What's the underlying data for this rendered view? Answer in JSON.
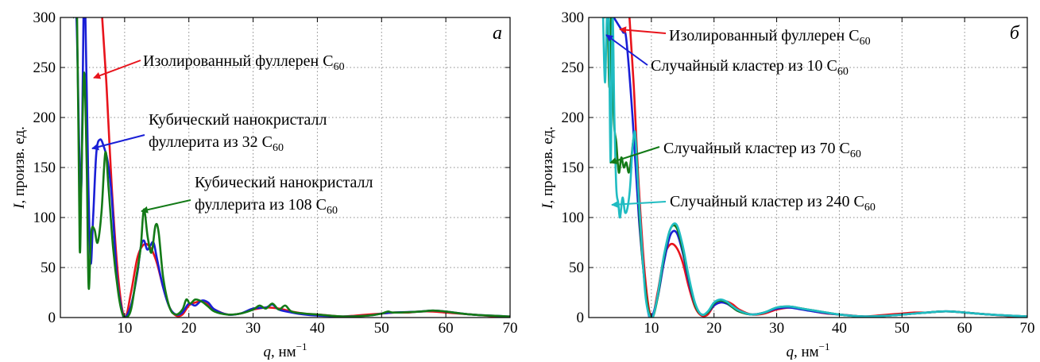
{
  "chart_data": [
    {
      "type": "line",
      "panel_label": "а",
      "xlabel": {
        "symbol": "q",
        "unit": ", нм",
        "exp": "−1"
      },
      "ylabel": {
        "symbol": "I",
        "unit": ", произв. ед."
      },
      "xlim": [
        0,
        70
      ],
      "ylim": [
        0,
        300
      ],
      "xticks": [
        10,
        20,
        30,
        40,
        50,
        60,
        70
      ],
      "yticks": [
        0,
        50,
        100,
        150,
        200,
        250,
        300
      ],
      "grid": true,
      "series": [
        {
          "name": "Изолированный фуллерен C60",
          "color": "#e8141c",
          "x": [
            6.5,
            7.2,
            8.0,
            9.0,
            10.0,
            11.0,
            12.0,
            13.0,
            14.0,
            15.0,
            16.0,
            17.0,
            18.0,
            19.0,
            20.0,
            21.0,
            22.0,
            23.0,
            24.0,
            26.0,
            28.0,
            30.0,
            32.0,
            34.0,
            36.0,
            38.0,
            40.0,
            42.0,
            44.0,
            46.0,
            48.0,
            50.0,
            52.0,
            54.0,
            56.0,
            58.0,
            60.0,
            62.0,
            64.0,
            66.0,
            68.0,
            70.0
          ],
          "y": [
            300,
            230,
            130,
            40,
            0,
            25,
            60,
            73,
            70,
            55,
            30,
            10,
            2,
            3,
            12,
            15,
            16,
            13,
            8,
            3,
            4,
            8,
            10,
            9,
            6,
            4,
            3,
            2,
            1,
            2,
            3,
            4,
            5,
            5,
            6,
            6,
            5,
            4,
            3,
            2,
            1,
            1
          ]
        },
        {
          "name": "Кубический нанокристалл фуллерита из 32 C60",
          "color": "#1a1fd6",
          "x": [
            2.0,
            2.5,
            3.0,
            3.3,
            3.6,
            3.9,
            4.3,
            4.7,
            5.1,
            5.6,
            6.2,
            6.8,
            7.4,
            8.0,
            8.8,
            9.5,
            10.0,
            11.0,
            12.0,
            12.5,
            13.0,
            13.5,
            14.0,
            14.5,
            15.0,
            16.0,
            17.0,
            18.0,
            19.0,
            20.0,
            21.0,
            22.0,
            23.0,
            24.0,
            26.0,
            28.0,
            30.0,
            32.0,
            33.0,
            34.0,
            36.0,
            38.0,
            40.0,
            44.0,
            48.0,
            50.0,
            52.0,
            56.0,
            58.0,
            60.0,
            64.0,
            70.0
          ],
          "y": [
            300,
            300,
            150,
            140,
            300,
            300,
            150,
            55,
            100,
            165,
            178,
            170,
            155,
            120,
            40,
            10,
            0,
            12,
            45,
            70,
            77,
            68,
            72,
            75,
            60,
            30,
            10,
            3,
            5,
            14,
            12,
            17,
            15,
            8,
            3,
            4,
            9,
            10,
            13,
            8,
            5,
            3,
            2,
            1,
            2,
            4,
            5,
            6,
            7,
            6,
            3,
            1
          ]
        },
        {
          "name": "Кубический нанокристалл фуллерита из 108 C60",
          "color": "#137a17",
          "x": [
            2.0,
            2.6,
            3.0,
            3.3,
            3.7,
            4.1,
            4.4,
            4.8,
            5.3,
            5.8,
            6.4,
            7.0,
            7.5,
            8.2,
            9.0,
            9.6,
            10.2,
            11.0,
            11.8,
            12.5,
            13.0,
            13.6,
            14.2,
            14.8,
            15.3,
            16.0,
            17.0,
            18.0,
            19.0,
            19.6,
            20.2,
            21.0,
            22.0,
            23.0,
            24.0,
            26.0,
            28.0,
            30.0,
            31.0,
            32.0,
            33.0,
            34.0,
            35.0,
            36.0,
            38.0,
            40.0,
            44.0,
            48.0,
            50.0,
            51.0,
            52.0,
            56.0,
            58.0,
            60.0,
            64.0,
            70.0
          ],
          "y": [
            300,
            300,
            70,
            150,
            245,
            150,
            30,
            85,
            88,
            75,
            105,
            165,
            130,
            70,
            25,
            5,
            0,
            8,
            40,
            70,
            108,
            80,
            65,
            92,
            85,
            40,
            10,
            3,
            8,
            18,
            14,
            18,
            16,
            11,
            6,
            3,
            4,
            8,
            12,
            9,
            14,
            8,
            12,
            6,
            4,
            3,
            1,
            2,
            4,
            6,
            5,
            6,
            7,
            6,
            3,
            1
          ]
        }
      ],
      "annotations": [
        {
          "lines": [
            [
              "Изолированный фуллерен С",
              "60"
            ]
          ],
          "color": "#e8141c"
        },
        {
          "lines": [
            [
              "Кубический    нанокристалл",
              ""
            ],
            [
              "фуллерита из 32 С",
              "60"
            ]
          ],
          "color": "#1a1fd6"
        },
        {
          "lines": [
            [
              "Кубический    нанокристалл",
              ""
            ],
            [
              "фуллерита из 108 С",
              "60"
            ]
          ],
          "color": "#137a17"
        }
      ]
    },
    {
      "type": "line",
      "panel_label": "б",
      "xlabel": {
        "symbol": "q",
        "unit": ", нм",
        "exp": "−1"
      },
      "ylabel": {
        "symbol": "I",
        "unit": ", произв. ед."
      },
      "xlim": [
        0,
        70
      ],
      "ylim": [
        0,
        300
      ],
      "xticks": [
        10,
        20,
        30,
        40,
        50,
        60,
        70
      ],
      "yticks": [
        0,
        50,
        100,
        150,
        200,
        250,
        300
      ],
      "grid": true,
      "series": [
        {
          "name": "Изолированный фуллерен C60",
          "color": "#e8141c",
          "x": [
            6.5,
            7.2,
            8.0,
            9.0,
            10.0,
            11.0,
            12.0,
            13.0,
            14.0,
            15.0,
            16.0,
            17.0,
            18.0,
            19.0,
            20.0,
            21.0,
            22.0,
            23.0,
            24.0,
            26.0,
            28.0,
            30.0,
            32.0,
            34.0,
            36.0,
            38.0,
            40.0,
            42.0,
            44.0,
            46.0,
            48.0,
            50.0,
            52.0,
            54.0,
            56.0,
            58.0,
            60.0,
            62.0,
            64.0,
            66.0,
            68.0,
            70.0
          ],
          "y": [
            300,
            230,
            130,
            40,
            0,
            25,
            60,
            73,
            70,
            55,
            30,
            10,
            2,
            3,
            12,
            15,
            16,
            13,
            8,
            3,
            4,
            8,
            10,
            9,
            6,
            4,
            3,
            2,
            1,
            2,
            3,
            4,
            5,
            5,
            6,
            6,
            5,
            4,
            3,
            2,
            1,
            1
          ]
        },
        {
          "name": "Случайный кластер из 10 C60",
          "color": "#1a1fd6",
          "x": [
            4.0,
            4.5,
            5.0,
            5.5,
            6.0,
            7.0,
            8.0,
            9.0,
            9.5,
            10.0,
            11.0,
            12.0,
            13.0,
            14.0,
            15.0,
            16.0,
            17.0,
            18.0,
            19.0,
            20.0,
            21.0,
            22.0,
            23.0,
            24.0,
            26.0,
            28.0,
            30.0,
            32.0,
            34.0,
            36.0,
            40.0,
            44.0,
            48.0,
            52.0,
            56.0,
            58.0,
            60.0,
            64.0,
            70.0
          ],
          "y": [
            300,
            295,
            290,
            285,
            278,
            200,
            100,
            30,
            5,
            0,
            20,
            55,
            82,
            85,
            65,
            35,
            12,
            3,
            5,
            12,
            15,
            14,
            10,
            6,
            3,
            5,
            9,
            10,
            8,
            6,
            3,
            1,
            2,
            4,
            6,
            6,
            5,
            3,
            1
          ]
        },
        {
          "name": "Случайный кластер из 70 C60",
          "color": "#137a17",
          "x": [
            2.5,
            3.0,
            3.3,
            3.6,
            4.0,
            4.4,
            4.8,
            5.2,
            5.6,
            6.0,
            6.4,
            6.8,
            7.2,
            7.6,
            8.2,
            9.0,
            9.6,
            10.2,
            11.0,
            12.0,
            13.0,
            14.0,
            15.0,
            16.0,
            17.0,
            18.0,
            19.0,
            20.0,
            21.0,
            22.0,
            23.0,
            24.0,
            26.0,
            28.0,
            30.0,
            32.0,
            34.0,
            36.0,
            40.0,
            44.0,
            48.0,
            52.0,
            56.0,
            58.0,
            60.0,
            64.0,
            70.0
          ],
          "y": [
            300,
            300,
            230,
            300,
            200,
            175,
            145,
            160,
            150,
            155,
            145,
            160,
            180,
            170,
            90,
            30,
            5,
            0,
            20,
            60,
            88,
            90,
            68,
            38,
            12,
            3,
            5,
            14,
            17,
            15,
            10,
            6,
            3,
            5,
            10,
            11,
            9,
            7,
            3,
            1,
            2,
            4,
            6,
            6,
            5,
            3,
            1
          ]
        },
        {
          "name": "Случайный кластер из 240 C60",
          "color": "#20bcc2",
          "x": [
            2.3,
            2.6,
            2.9,
            3.2,
            3.5,
            3.8,
            4.1,
            4.4,
            4.7,
            5.0,
            5.4,
            5.8,
            6.2,
            6.6,
            7.0,
            7.4,
            7.8,
            8.4,
            9.0,
            9.6,
            10.2,
            11.0,
            12.0,
            13.0,
            14.0,
            15.0,
            16.0,
            17.0,
            18.0,
            19.0,
            20.0,
            21.0,
            22.0,
            23.0,
            24.0,
            26.0,
            28.0,
            30.0,
            32.0,
            34.0,
            36.0,
            40.0,
            44.0,
            48.0,
            52.0,
            56.0,
            58.0,
            60.0,
            64.0,
            70.0
          ],
          "y": [
            300,
            235,
            300,
            300,
            155,
            300,
            200,
            130,
            115,
            100,
            120,
            105,
            110,
            130,
            170,
            185,
            140,
            80,
            25,
            3,
            0,
            22,
            62,
            88,
            93,
            72,
            40,
            14,
            3,
            6,
            15,
            18,
            16,
            11,
            7,
            3,
            5,
            10,
            11,
            9,
            7,
            3,
            1,
            2,
            4,
            6,
            6,
            5,
            3,
            1
          ]
        }
      ],
      "annotations": [
        {
          "lines": [
            [
              "Изолированный фуллерен С",
              "60"
            ]
          ],
          "color": "#e8141c"
        },
        {
          "lines": [
            [
              "Случайный кластер из 10 С",
              "60"
            ]
          ],
          "color": "#1a1fd6"
        },
        {
          "lines": [
            [
              "Случайный кластер из 70 С",
              "60"
            ]
          ],
          "color": "#137a17"
        },
        {
          "lines": [
            [
              "Случайный кластер из 240 С",
              "60"
            ]
          ],
          "color": "#20bcc2"
        }
      ]
    }
  ]
}
